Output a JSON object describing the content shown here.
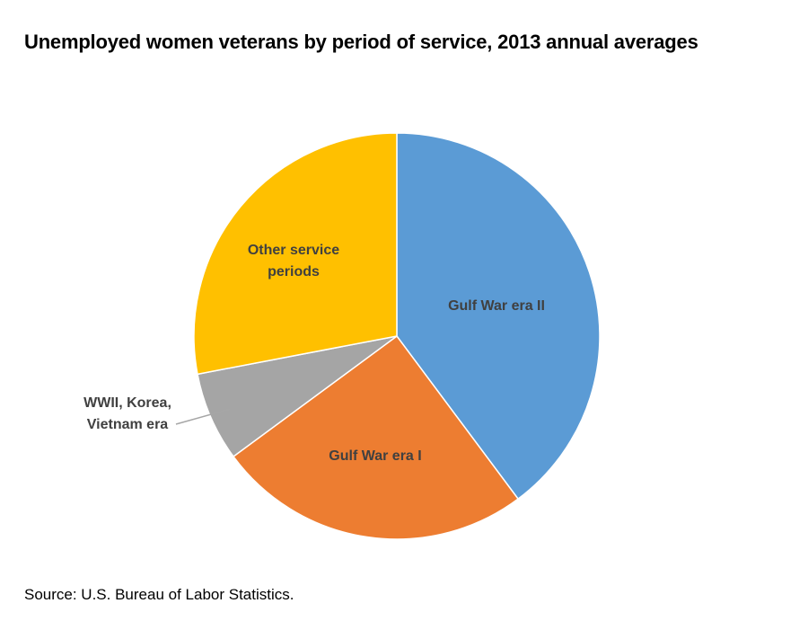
{
  "title": "Unemployed women veterans by period of service, 2013 annual averages",
  "source": "Source: U.S. Bureau of Labor Statistics.",
  "chart_data": {
    "type": "pie",
    "title": "Unemployed women veterans by period of service, 2013 annual averages",
    "legend": "none (slices labeled directly)",
    "start": "12 o'clock, clockwise",
    "slices": [
      {
        "label": "Gulf War era II",
        "label_lines": [
          "Gulf War era II"
        ],
        "value": 39.8,
        "color": "#5B9BD5",
        "label_placement": "inside"
      },
      {
        "label": "Gulf War era I",
        "label_lines": [
          "Gulf War era I"
        ],
        "value": 25.1,
        "color": "#ED7D31",
        "label_placement": "inside"
      },
      {
        "label": "WWII, Korea, Vietnam era",
        "label_lines": [
          "WWII, Korea,",
          "Vietnam era"
        ],
        "value": 7.1,
        "color": "#A5A5A5",
        "label_placement": "outside with leader line"
      },
      {
        "label": "Other service periods",
        "label_lines": [
          "Other service",
          "periods"
        ],
        "value": 28.0,
        "color": "#FFC000",
        "label_placement": "inside"
      }
    ],
    "value_unit": "percent of unemployed women veterans (estimated from slice angles)"
  }
}
